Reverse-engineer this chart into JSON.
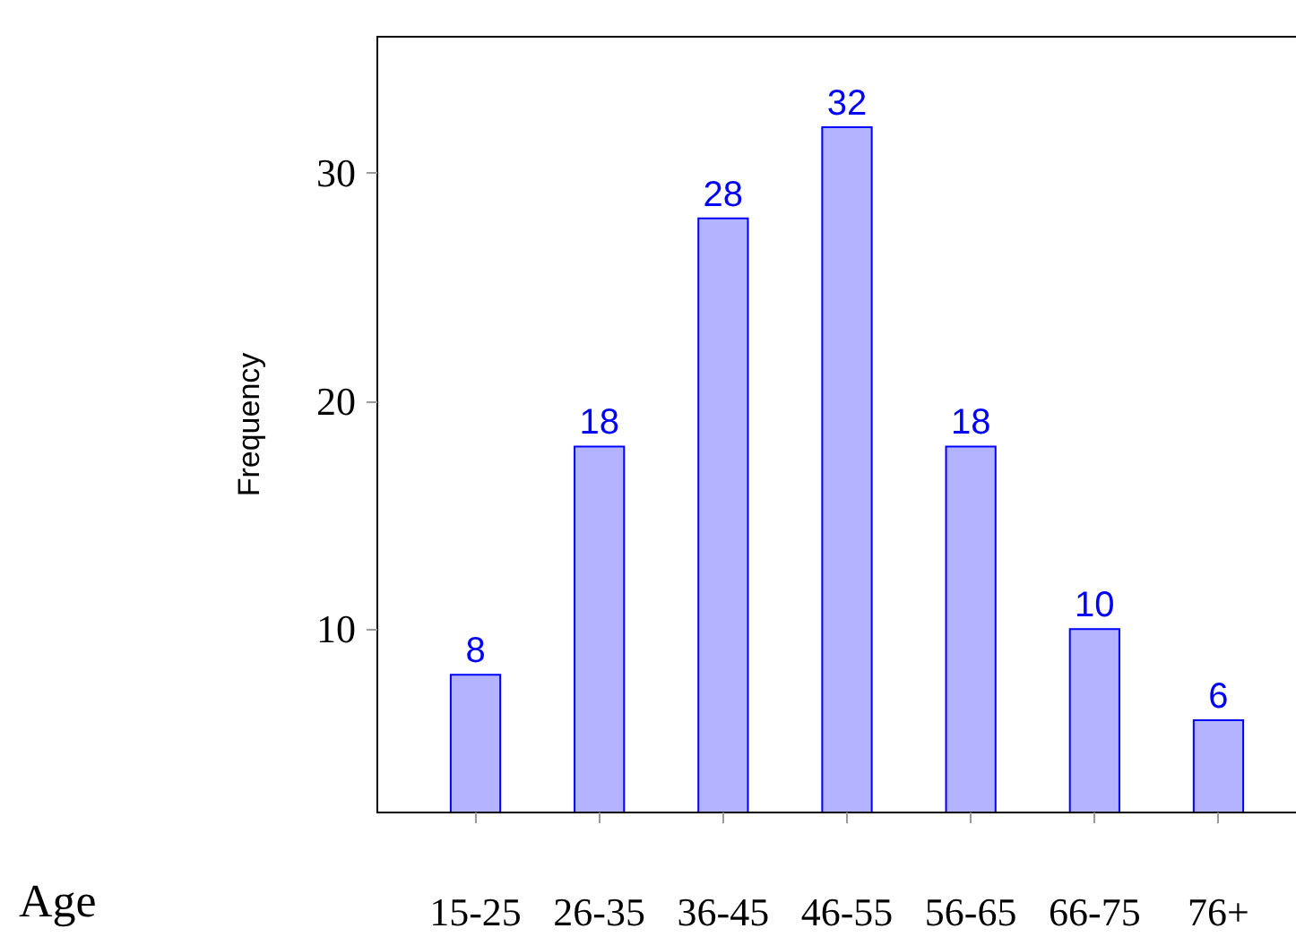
{
  "chart_data": {
    "type": "bar",
    "xlabel": "Age",
    "ylabel": "Frequency",
    "categories": [
      "15-25",
      "26-35",
      "36-45",
      "46-55",
      "56-65",
      "66-75",
      "76+"
    ],
    "values": [
      8,
      18,
      28,
      32,
      18,
      10,
      6
    ],
    "color": "#b3b3ff",
    "ylim": [
      2,
      36
    ],
    "yticks": [
      10,
      20,
      30
    ],
    "data_labels": true
  }
}
